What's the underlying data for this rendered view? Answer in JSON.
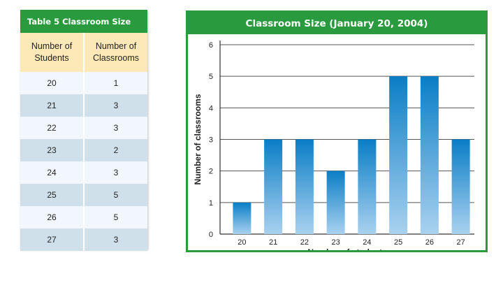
{
  "table": {
    "title": "Table 5  Classroom Size",
    "headers": [
      "Number of\nStudents",
      "Number of\nClassrooms"
    ],
    "rows": [
      [
        "20",
        "1"
      ],
      [
        "21",
        "3"
      ],
      [
        "22",
        "3"
      ],
      [
        "23",
        "2"
      ],
      [
        "24",
        "3"
      ],
      [
        "25",
        "5"
      ],
      [
        "26",
        "5"
      ],
      [
        "27",
        "3"
      ]
    ]
  },
  "chart_data": {
    "type": "bar",
    "title": "Classroom Size (January 20, 2004)",
    "categories": [
      "20",
      "21",
      "22",
      "23",
      "24",
      "25",
      "26",
      "27"
    ],
    "values": [
      1,
      3,
      3,
      2,
      3,
      5,
      5,
      3
    ],
    "xlabel": "Number of students",
    "ylabel": "Number of classrooms",
    "ylim": [
      0,
      6
    ],
    "yticks": [
      "0",
      "1",
      "2",
      "3",
      "4",
      "5",
      "6"
    ],
    "grid": true,
    "colors": {
      "bar_top": "#0a7ec6",
      "bar_bottom": "#a9d1ef",
      "frame": "#2a9a3e"
    }
  }
}
